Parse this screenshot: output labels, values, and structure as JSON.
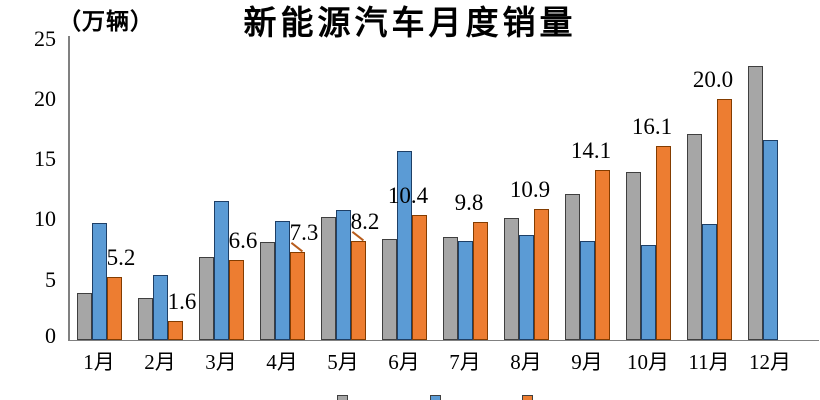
{
  "title": "新能源汽车月度销量",
  "unit_label": "（万辆）",
  "chart_data": {
    "type": "bar",
    "title": "新能源汽车月度销量",
    "ylabel": "（万辆）",
    "xlabel": "",
    "ylim": [
      0,
      25
    ],
    "yticks": [
      0,
      5,
      10,
      15,
      20,
      25
    ],
    "grid": false,
    "legend_position": "bottom (clipped off screen edge)",
    "categories": [
      "1月",
      "2月",
      "3月",
      "4月",
      "5月",
      "6月",
      "7月",
      "8月",
      "9月",
      "10月",
      "11月",
      "12月"
    ],
    "series": [
      {
        "key": "gray",
        "name": "gray-series",
        "color": "#a6a6a6",
        "border": "#3f3f3f",
        "values": [
          3.9,
          3.5,
          6.9,
          8.1,
          10.2,
          8.4,
          8.5,
          10.1,
          12.1,
          13.9,
          17.1,
          22.7
        ]
      },
      {
        "key": "blue",
        "name": "blue-series",
        "color": "#5b9bd5",
        "border": "#1e3f66",
        "values": [
          9.7,
          5.4,
          11.5,
          9.9,
          10.8,
          15.7,
          8.2,
          8.7,
          8.2,
          7.9,
          9.6,
          16.6
        ]
      },
      {
        "key": "orange",
        "name": "orange-series",
        "color": "#ed7d31",
        "border": "#833c00",
        "values": [
          5.2,
          1.6,
          6.6,
          7.3,
          8.2,
          10.4,
          9.8,
          10.9,
          14.1,
          16.1,
          20.0,
          null
        ]
      }
    ],
    "data_labels": [
      {
        "text": "5.2"
      },
      {
        "text": "1.6"
      },
      {
        "text": "6.6"
      },
      {
        "text": "7.3",
        "callout": true
      },
      {
        "text": "8.2",
        "callout": true
      },
      {
        "text": "10.4"
      },
      {
        "text": "9.8"
      },
      {
        "text": "10.9"
      },
      {
        "text": "14.1"
      },
      {
        "text": "16.1"
      },
      {
        "text": "20.0"
      }
    ]
  },
  "legend": {
    "items": [
      {
        "label": "",
        "color": "#a6a6a6"
      },
      {
        "label": "",
        "color": "#5b9bd5"
      },
      {
        "label": "",
        "color": "#ed7d31"
      }
    ]
  },
  "colors": {
    "background": "#ffffff",
    "axis": "#808080",
    "text": "#000000",
    "callout": "#b85c1c"
  }
}
